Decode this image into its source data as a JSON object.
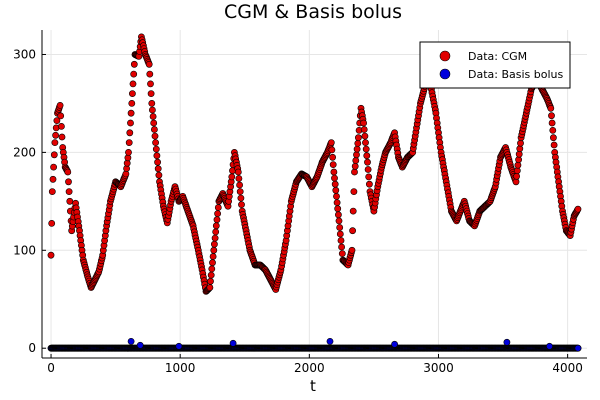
{
  "chart_data": {
    "type": "scatter",
    "title": "CGM & Basis bolus",
    "xlabel": "t",
    "ylabel": "",
    "xlim": [
      -70,
      4150
    ],
    "ylim": [
      -10,
      325
    ],
    "xticks": [
      0,
      1000,
      2000,
      3000,
      4000
    ],
    "yticks": [
      0,
      100,
      200,
      300
    ],
    "grid": true,
    "legend_position": "top-right",
    "series": [
      {
        "name": "Data: CGM",
        "color": "#e00000",
        "anchors": [
          [
            0,
            95
          ],
          [
            10,
            160
          ],
          [
            30,
            210
          ],
          [
            50,
            240
          ],
          [
            70,
            248
          ],
          [
            90,
            205
          ],
          [
            110,
            185
          ],
          [
            130,
            180
          ],
          [
            160,
            120
          ],
          [
            190,
            148
          ],
          [
            220,
            120
          ],
          [
            250,
            90
          ],
          [
            280,
            75
          ],
          [
            310,
            62
          ],
          [
            340,
            70
          ],
          [
            370,
            78
          ],
          [
            400,
            95
          ],
          [
            430,
            125
          ],
          [
            460,
            150
          ],
          [
            500,
            170
          ],
          [
            540,
            165
          ],
          [
            580,
            178
          ],
          [
            600,
            200
          ],
          [
            630,
            260
          ],
          [
            650,
            300
          ],
          [
            680,
            298
          ],
          [
            700,
            318
          ],
          [
            730,
            300
          ],
          [
            760,
            290
          ],
          [
            780,
            250
          ],
          [
            810,
            210
          ],
          [
            840,
            170
          ],
          [
            870,
            145
          ],
          [
            900,
            128
          ],
          [
            930,
            150
          ],
          [
            960,
            165
          ],
          [
            990,
            150
          ],
          [
            1020,
            155
          ],
          [
            1060,
            140
          ],
          [
            1100,
            125
          ],
          [
            1140,
            100
          ],
          [
            1170,
            80
          ],
          [
            1200,
            58
          ],
          [
            1230,
            62
          ],
          [
            1260,
            100
          ],
          [
            1300,
            150
          ],
          [
            1330,
            158
          ],
          [
            1370,
            145
          ],
          [
            1400,
            175
          ],
          [
            1420,
            200
          ],
          [
            1450,
            180
          ],
          [
            1480,
            140
          ],
          [
            1510,
            120
          ],
          [
            1540,
            100
          ],
          [
            1580,
            85
          ],
          [
            1620,
            85
          ],
          [
            1660,
            80
          ],
          [
            1700,
            70
          ],
          [
            1740,
            60
          ],
          [
            1780,
            80
          ],
          [
            1820,
            110
          ],
          [
            1860,
            150
          ],
          [
            1900,
            170
          ],
          [
            1940,
            178
          ],
          [
            1980,
            175
          ],
          [
            2020,
            165
          ],
          [
            2060,
            175
          ],
          [
            2100,
            190
          ],
          [
            2140,
            200
          ],
          [
            2170,
            210
          ],
          [
            2190,
            180
          ],
          [
            2230,
            130
          ],
          [
            2260,
            90
          ],
          [
            2300,
            85
          ],
          [
            2330,
            100
          ],
          [
            2350,
            180
          ],
          [
            2380,
            215
          ],
          [
            2400,
            245
          ],
          [
            2420,
            230
          ],
          [
            2450,
            190
          ],
          [
            2470,
            160
          ],
          [
            2500,
            140
          ],
          [
            2530,
            165
          ],
          [
            2560,
            185
          ],
          [
            2590,
            200
          ],
          [
            2630,
            210
          ],
          [
            2660,
            220
          ],
          [
            2690,
            195
          ],
          [
            2720,
            185
          ],
          [
            2760,
            195
          ],
          [
            2800,
            200
          ],
          [
            2830,
            225
          ],
          [
            2860,
            250
          ],
          [
            2900,
            270
          ],
          [
            2940,
            268
          ],
          [
            2980,
            240
          ],
          [
            3020,
            200
          ],
          [
            3060,
            170
          ],
          [
            3100,
            140
          ],
          [
            3140,
            130
          ],
          [
            3170,
            140
          ],
          [
            3200,
            150
          ],
          [
            3240,
            130
          ],
          [
            3280,
            125
          ],
          [
            3320,
            140
          ],
          [
            3360,
            145
          ],
          [
            3400,
            150
          ],
          [
            3440,
            165
          ],
          [
            3480,
            195
          ],
          [
            3520,
            205
          ],
          [
            3560,
            185
          ],
          [
            3600,
            170
          ],
          [
            3640,
            215
          ],
          [
            3680,
            240
          ],
          [
            3720,
            265
          ],
          [
            3760,
            275
          ],
          [
            3800,
            265
          ],
          [
            3840,
            255
          ],
          [
            3870,
            245
          ],
          [
            3900,
            200
          ],
          [
            3930,
            170
          ],
          [
            3960,
            140
          ],
          [
            3990,
            120
          ],
          [
            4020,
            115
          ],
          [
            4050,
            135
          ],
          [
            4080,
            142
          ]
        ]
      },
      {
        "name": "Data: Basis bolus",
        "color": "#0000dd",
        "baseline": 0,
        "x_range": [
          0,
          4080
        ],
        "spikes": [
          [
            620,
            7
          ],
          [
            690,
            3
          ],
          [
            990,
            2
          ],
          [
            1410,
            5
          ],
          [
            2160,
            7
          ],
          [
            2660,
            4
          ],
          [
            3530,
            6
          ],
          [
            3860,
            2
          ],
          [
            4080,
            0
          ]
        ]
      }
    ]
  }
}
